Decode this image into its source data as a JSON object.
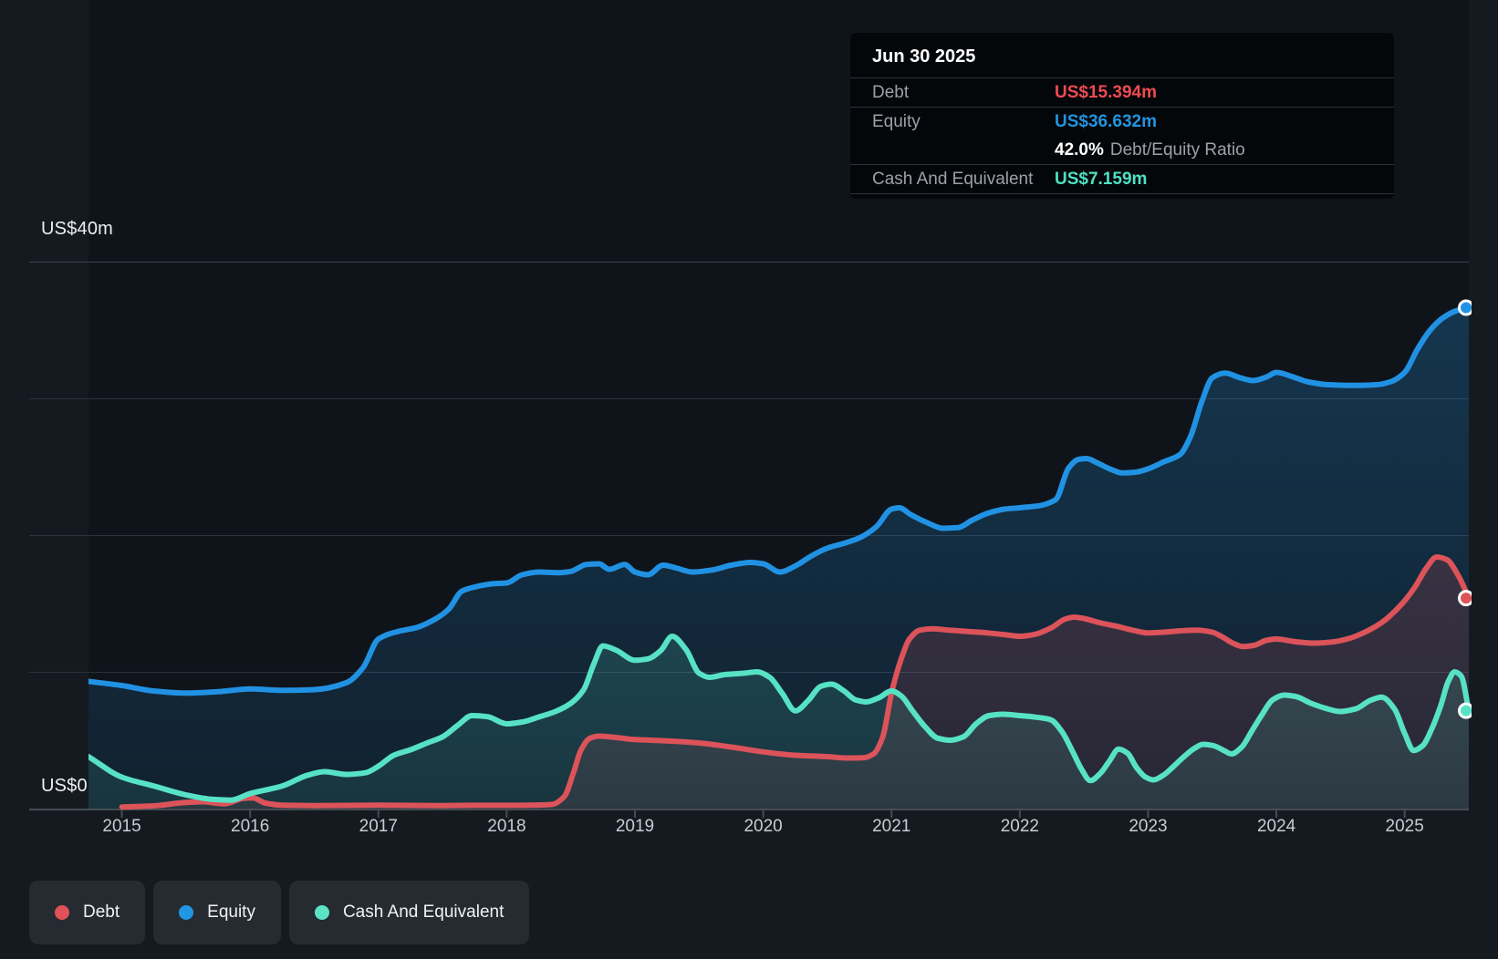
{
  "y_axis": {
    "top_label": "US$40m",
    "zero_label": "US$0"
  },
  "x_axis": {
    "years": [
      "2015",
      "2016",
      "2017",
      "2018",
      "2019",
      "2020",
      "2021",
      "2022",
      "2023",
      "2024",
      "2025"
    ]
  },
  "tooltip": {
    "date": "Jun 30 2025",
    "debt_label": "Debt",
    "debt_value": "US$15.394m",
    "equity_label": "Equity",
    "equity_value": "US$36.632m",
    "ratio_value": "42.0%",
    "ratio_label": "Debt/Equity Ratio",
    "cash_label": "Cash And Equivalent",
    "cash_value": "US$7.159m",
    "debt_color": "#ed4b51",
    "equity_color": "#2394df",
    "cash_color": "#4ee1c3"
  },
  "legend": [
    {
      "label": "Debt",
      "color": "#e15258"
    },
    {
      "label": "Equity",
      "color": "#2196e3"
    },
    {
      "label": "Cash And Equivalent",
      "color": "#5ce3c5"
    }
  ],
  "chart_data": {
    "type": "area",
    "x_domain": [
      2014.74,
      2025.5
    ],
    "ylim": [
      0,
      40
    ],
    "y_gridline_step": 10,
    "y_unit": "US$m",
    "legend_position": "bottom-left",
    "grid": true,
    "series": [
      {
        "name": "Equity",
        "line_color": "#2192e3",
        "fill_color": "35,148,223",
        "end_value": 36.632,
        "points": [
          [
            2014.74,
            9.3
          ],
          [
            2015.0,
            9.0
          ],
          [
            2015.25,
            8.6
          ],
          [
            2015.5,
            8.45
          ],
          [
            2015.75,
            8.55
          ],
          [
            2016.0,
            8.75
          ],
          [
            2016.25,
            8.65
          ],
          [
            2016.5,
            8.7
          ],
          [
            2016.75,
            9.2
          ],
          [
            2016.88,
            10.3
          ],
          [
            2017.0,
            12.4
          ],
          [
            2017.15,
            12.95
          ],
          [
            2017.3,
            13.25
          ],
          [
            2017.45,
            13.9
          ],
          [
            2017.55,
            14.6
          ],
          [
            2017.65,
            15.9
          ],
          [
            2017.75,
            16.2
          ],
          [
            2017.9,
            16.45
          ],
          [
            2018.0,
            16.5
          ],
          [
            2018.12,
            17.1
          ],
          [
            2018.25,
            17.3
          ],
          [
            2018.4,
            17.25
          ],
          [
            2018.5,
            17.35
          ],
          [
            2018.62,
            17.85
          ],
          [
            2018.72,
            17.9
          ],
          [
            2018.8,
            17.5
          ],
          [
            2018.92,
            17.85
          ],
          [
            2019.0,
            17.3
          ],
          [
            2019.1,
            17.1
          ],
          [
            2019.22,
            17.8
          ],
          [
            2019.32,
            17.6
          ],
          [
            2019.45,
            17.3
          ],
          [
            2019.6,
            17.45
          ],
          [
            2019.75,
            17.8
          ],
          [
            2019.9,
            18.0
          ],
          [
            2020.0,
            17.9
          ],
          [
            2020.13,
            17.3
          ],
          [
            2020.25,
            17.75
          ],
          [
            2020.38,
            18.5
          ],
          [
            2020.5,
            19.05
          ],
          [
            2020.63,
            19.4
          ],
          [
            2020.75,
            19.8
          ],
          [
            2020.88,
            20.6
          ],
          [
            2021.0,
            21.9
          ],
          [
            2021.06,
            22.0
          ],
          [
            2021.15,
            21.5
          ],
          [
            2021.28,
            20.9
          ],
          [
            2021.4,
            20.5
          ],
          [
            2021.52,
            20.55
          ],
          [
            2021.63,
            21.1
          ],
          [
            2021.75,
            21.6
          ],
          [
            2021.88,
            21.9
          ],
          [
            2022.0,
            22.0
          ],
          [
            2022.15,
            22.15
          ],
          [
            2022.28,
            22.6
          ],
          [
            2022.38,
            24.9
          ],
          [
            2022.46,
            25.55
          ],
          [
            2022.52,
            25.6
          ],
          [
            2022.6,
            25.3
          ],
          [
            2022.7,
            24.85
          ],
          [
            2022.8,
            24.55
          ],
          [
            2022.9,
            24.6
          ],
          [
            2023.0,
            24.85
          ],
          [
            2023.12,
            25.35
          ],
          [
            2023.25,
            25.9
          ],
          [
            2023.33,
            27.2
          ],
          [
            2023.42,
            29.8
          ],
          [
            2023.5,
            31.5
          ],
          [
            2023.6,
            31.85
          ],
          [
            2023.72,
            31.5
          ],
          [
            2023.82,
            31.3
          ],
          [
            2023.92,
            31.55
          ],
          [
            2024.0,
            31.9
          ],
          [
            2024.12,
            31.6
          ],
          [
            2024.25,
            31.2
          ],
          [
            2024.4,
            31.0
          ],
          [
            2024.6,
            30.95
          ],
          [
            2024.78,
            31.0
          ],
          [
            2024.9,
            31.25
          ],
          [
            2025.0,
            31.9
          ],
          [
            2025.1,
            33.6
          ],
          [
            2025.2,
            35.0
          ],
          [
            2025.3,
            35.9
          ],
          [
            2025.4,
            36.4
          ],
          [
            2025.5,
            36.632
          ]
        ]
      },
      {
        "name": "Debt",
        "line_color": "#dc535a",
        "fill_color": "225,82,88",
        "end_value": 15.394,
        "points": [
          [
            2015.0,
            0.12
          ],
          [
            2015.25,
            0.2
          ],
          [
            2015.5,
            0.45
          ],
          [
            2015.63,
            0.5
          ],
          [
            2015.8,
            0.35
          ],
          [
            2015.95,
            0.75
          ],
          [
            2016.02,
            0.78
          ],
          [
            2016.12,
            0.4
          ],
          [
            2016.25,
            0.25
          ],
          [
            2016.5,
            0.22
          ],
          [
            2016.75,
            0.23
          ],
          [
            2017.0,
            0.25
          ],
          [
            2017.25,
            0.23
          ],
          [
            2017.5,
            0.22
          ],
          [
            2017.75,
            0.24
          ],
          [
            2018.0,
            0.24
          ],
          [
            2018.2,
            0.25
          ],
          [
            2018.35,
            0.3
          ],
          [
            2018.45,
            0.9
          ],
          [
            2018.52,
            2.6
          ],
          [
            2018.58,
            4.3
          ],
          [
            2018.65,
            5.15
          ],
          [
            2018.72,
            5.3
          ],
          [
            2018.85,
            5.2
          ],
          [
            2019.0,
            5.05
          ],
          [
            2019.25,
            4.95
          ],
          [
            2019.5,
            4.8
          ],
          [
            2019.75,
            4.5
          ],
          [
            2020.0,
            4.15
          ],
          [
            2020.25,
            3.9
          ],
          [
            2020.5,
            3.8
          ],
          [
            2020.65,
            3.7
          ],
          [
            2020.78,
            3.72
          ],
          [
            2020.86,
            4.0
          ],
          [
            2020.93,
            5.2
          ],
          [
            2021.0,
            8.45
          ],
          [
            2021.07,
            10.8
          ],
          [
            2021.14,
            12.4
          ],
          [
            2021.22,
            13.05
          ],
          [
            2021.32,
            13.15
          ],
          [
            2021.45,
            13.05
          ],
          [
            2021.6,
            12.95
          ],
          [
            2021.75,
            12.85
          ],
          [
            2021.9,
            12.7
          ],
          [
            2022.0,
            12.6
          ],
          [
            2022.12,
            12.75
          ],
          [
            2022.25,
            13.25
          ],
          [
            2022.35,
            13.85
          ],
          [
            2022.42,
            14.0
          ],
          [
            2022.5,
            13.9
          ],
          [
            2022.62,
            13.6
          ],
          [
            2022.75,
            13.35
          ],
          [
            2022.88,
            13.05
          ],
          [
            2023.0,
            12.85
          ],
          [
            2023.12,
            12.9
          ],
          [
            2023.25,
            13.0
          ],
          [
            2023.38,
            13.05
          ],
          [
            2023.5,
            12.9
          ],
          [
            2023.58,
            12.55
          ],
          [
            2023.66,
            12.1
          ],
          [
            2023.74,
            11.85
          ],
          [
            2023.83,
            11.95
          ],
          [
            2023.92,
            12.3
          ],
          [
            2024.0,
            12.4
          ],
          [
            2024.15,
            12.2
          ],
          [
            2024.3,
            12.1
          ],
          [
            2024.45,
            12.2
          ],
          [
            2024.57,
            12.45
          ],
          [
            2024.7,
            12.95
          ],
          [
            2024.82,
            13.6
          ],
          [
            2024.92,
            14.4
          ],
          [
            2025.0,
            15.2
          ],
          [
            2025.08,
            16.2
          ],
          [
            2025.17,
            17.6
          ],
          [
            2025.25,
            18.4
          ],
          [
            2025.33,
            18.2
          ],
          [
            2025.42,
            17.0
          ],
          [
            2025.5,
            15.394
          ]
        ]
      },
      {
        "name": "Cash And Equivalent",
        "line_color": "#57e2c6",
        "fill_color": "87,224,196",
        "end_value": 7.159,
        "points": [
          [
            2014.74,
            3.8
          ],
          [
            2015.0,
            2.3
          ],
          [
            2015.25,
            1.65
          ],
          [
            2015.5,
            1.0
          ],
          [
            2015.7,
            0.68
          ],
          [
            2015.85,
            0.62
          ],
          [
            2016.0,
            1.1
          ],
          [
            2016.25,
            1.65
          ],
          [
            2016.45,
            2.45
          ],
          [
            2016.58,
            2.7
          ],
          [
            2016.75,
            2.5
          ],
          [
            2016.9,
            2.62
          ],
          [
            2017.0,
            3.1
          ],
          [
            2017.12,
            3.9
          ],
          [
            2017.25,
            4.3
          ],
          [
            2017.38,
            4.8
          ],
          [
            2017.5,
            5.25
          ],
          [
            2017.62,
            6.1
          ],
          [
            2017.73,
            6.8
          ],
          [
            2017.85,
            6.72
          ],
          [
            2018.0,
            6.2
          ],
          [
            2018.13,
            6.35
          ],
          [
            2018.25,
            6.7
          ],
          [
            2018.38,
            7.1
          ],
          [
            2018.5,
            7.7
          ],
          [
            2018.6,
            8.7
          ],
          [
            2018.68,
            10.6
          ],
          [
            2018.75,
            11.9
          ],
          [
            2018.85,
            11.6
          ],
          [
            2019.0,
            10.85
          ],
          [
            2019.1,
            10.95
          ],
          [
            2019.2,
            11.55
          ],
          [
            2019.29,
            12.6
          ],
          [
            2019.4,
            11.6
          ],
          [
            2019.5,
            9.9
          ],
          [
            2019.58,
            9.6
          ],
          [
            2019.7,
            9.8
          ],
          [
            2019.85,
            9.9
          ],
          [
            2019.95,
            10.0
          ],
          [
            2020.05,
            9.6
          ],
          [
            2020.15,
            8.4
          ],
          [
            2020.25,
            7.15
          ],
          [
            2020.35,
            7.9
          ],
          [
            2020.45,
            8.95
          ],
          [
            2020.53,
            9.1
          ],
          [
            2020.63,
            8.6
          ],
          [
            2020.72,
            7.95
          ],
          [
            2020.8,
            7.8
          ],
          [
            2020.9,
            8.1
          ],
          [
            2021.0,
            8.6
          ],
          [
            2021.08,
            8.2
          ],
          [
            2021.16,
            7.2
          ],
          [
            2021.26,
            6.0
          ],
          [
            2021.36,
            5.15
          ],
          [
            2021.46,
            5.0
          ],
          [
            2021.56,
            5.25
          ],
          [
            2021.66,
            6.2
          ],
          [
            2021.76,
            6.8
          ],
          [
            2021.87,
            6.9
          ],
          [
            2022.0,
            6.8
          ],
          [
            2022.13,
            6.68
          ],
          [
            2022.24,
            6.5
          ],
          [
            2022.33,
            5.6
          ],
          [
            2022.41,
            4.2
          ],
          [
            2022.48,
            2.9
          ],
          [
            2022.55,
            2.05
          ],
          [
            2022.63,
            2.6
          ],
          [
            2022.7,
            3.5
          ],
          [
            2022.77,
            4.35
          ],
          [
            2022.84,
            4.05
          ],
          [
            2022.91,
            3.0
          ],
          [
            2022.98,
            2.3
          ],
          [
            2023.04,
            2.1
          ],
          [
            2023.12,
            2.45
          ],
          [
            2023.2,
            3.1
          ],
          [
            2023.28,
            3.8
          ],
          [
            2023.36,
            4.4
          ],
          [
            2023.43,
            4.7
          ],
          [
            2023.51,
            4.6
          ],
          [
            2023.59,
            4.25
          ],
          [
            2023.65,
            4.0
          ],
          [
            2023.73,
            4.5
          ],
          [
            2023.81,
            5.7
          ],
          [
            2023.89,
            6.9
          ],
          [
            2023.97,
            7.95
          ],
          [
            2024.06,
            8.3
          ],
          [
            2024.15,
            8.2
          ],
          [
            2024.27,
            7.7
          ],
          [
            2024.38,
            7.35
          ],
          [
            2024.5,
            7.1
          ],
          [
            2024.62,
            7.3
          ],
          [
            2024.73,
            7.9
          ],
          [
            2024.82,
            8.15
          ],
          [
            2024.92,
            7.3
          ],
          [
            2025.0,
            5.5
          ],
          [
            2025.07,
            4.25
          ],
          [
            2025.14,
            4.6
          ],
          [
            2025.21,
            5.8
          ],
          [
            2025.28,
            7.5
          ],
          [
            2025.34,
            9.3
          ],
          [
            2025.39,
            10.0
          ],
          [
            2025.44,
            9.7
          ],
          [
            2025.5,
            7.159
          ]
        ]
      }
    ]
  }
}
